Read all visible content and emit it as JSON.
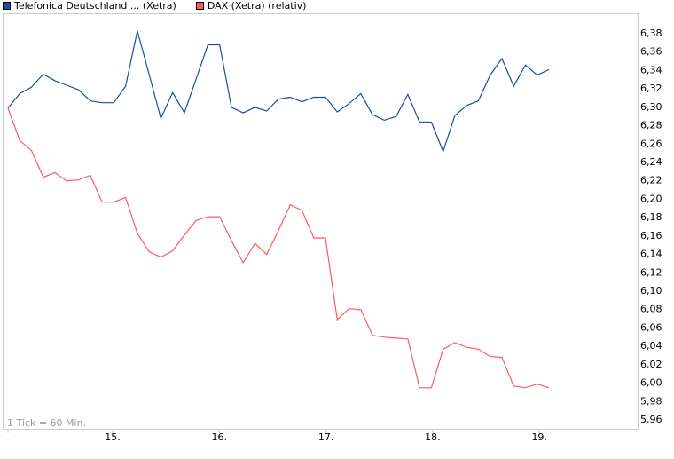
{
  "chart_data": {
    "type": "line",
    "title": "",
    "xlabel": "",
    "ylabel": "",
    "note": "1 Tick = 60 Min.",
    "ylim": [
      5.95,
      6.395
    ],
    "y_ticks": [
      "6,38",
      "6,36",
      "6,34",
      "6,32",
      "6,30",
      "6,28",
      "6,26",
      "6,24",
      "6,22",
      "6,20",
      "6,18",
      "6,16",
      "6,14",
      "6,12",
      "6,10",
      "6,08",
      "6,06",
      "6,04",
      "6,02",
      "6,00",
      "5,98",
      "5,96"
    ],
    "x_ticks": [
      "15.",
      "16.",
      "17.",
      "18.",
      "19."
    ],
    "grid": false,
    "legend_position": "top-left",
    "series": [
      {
        "name": "Telefonica Deutschland ... (Xetra)",
        "color": "#1a4e9e",
        "values": [
          6.298,
          6.314,
          6.321,
          6.335,
          6.328,
          6.323,
          6.318,
          6.306,
          6.304,
          6.304,
          6.322,
          6.382,
          6.335,
          6.287,
          6.315,
          6.293,
          6.33,
          6.367,
          6.367,
          6.299,
          6.293,
          6.299,
          6.295,
          6.308,
          6.31,
          6.305,
          6.31,
          6.31,
          6.294,
          6.303,
          6.314,
          6.291,
          6.285,
          6.289,
          6.313,
          6.283,
          6.283,
          6.251,
          6.29,
          6.301,
          6.306,
          6.334,
          6.352,
          6.322,
          6.345,
          6.334,
          6.34
        ]
      },
      {
        "name": "DAX (Xetra) (relativ)",
        "color": "#ff5a5a",
        "values": [
          6.298,
          6.263,
          6.252,
          6.223,
          6.228,
          6.219,
          6.22,
          6.225,
          6.196,
          6.196,
          6.201,
          6.162,
          6.142,
          6.136,
          6.143,
          6.16,
          6.176,
          6.18,
          6.18,
          6.154,
          6.13,
          6.151,
          6.139,
          6.165,
          6.193,
          6.187,
          6.157,
          6.157,
          6.068,
          6.08,
          6.079,
          6.051,
          6.049,
          6.048,
          6.047,
          5.994,
          5.994,
          6.036,
          6.043,
          6.038,
          6.036,
          6.028,
          6.027,
          5.996,
          5.994,
          5.998,
          5.994
        ]
      }
    ]
  }
}
